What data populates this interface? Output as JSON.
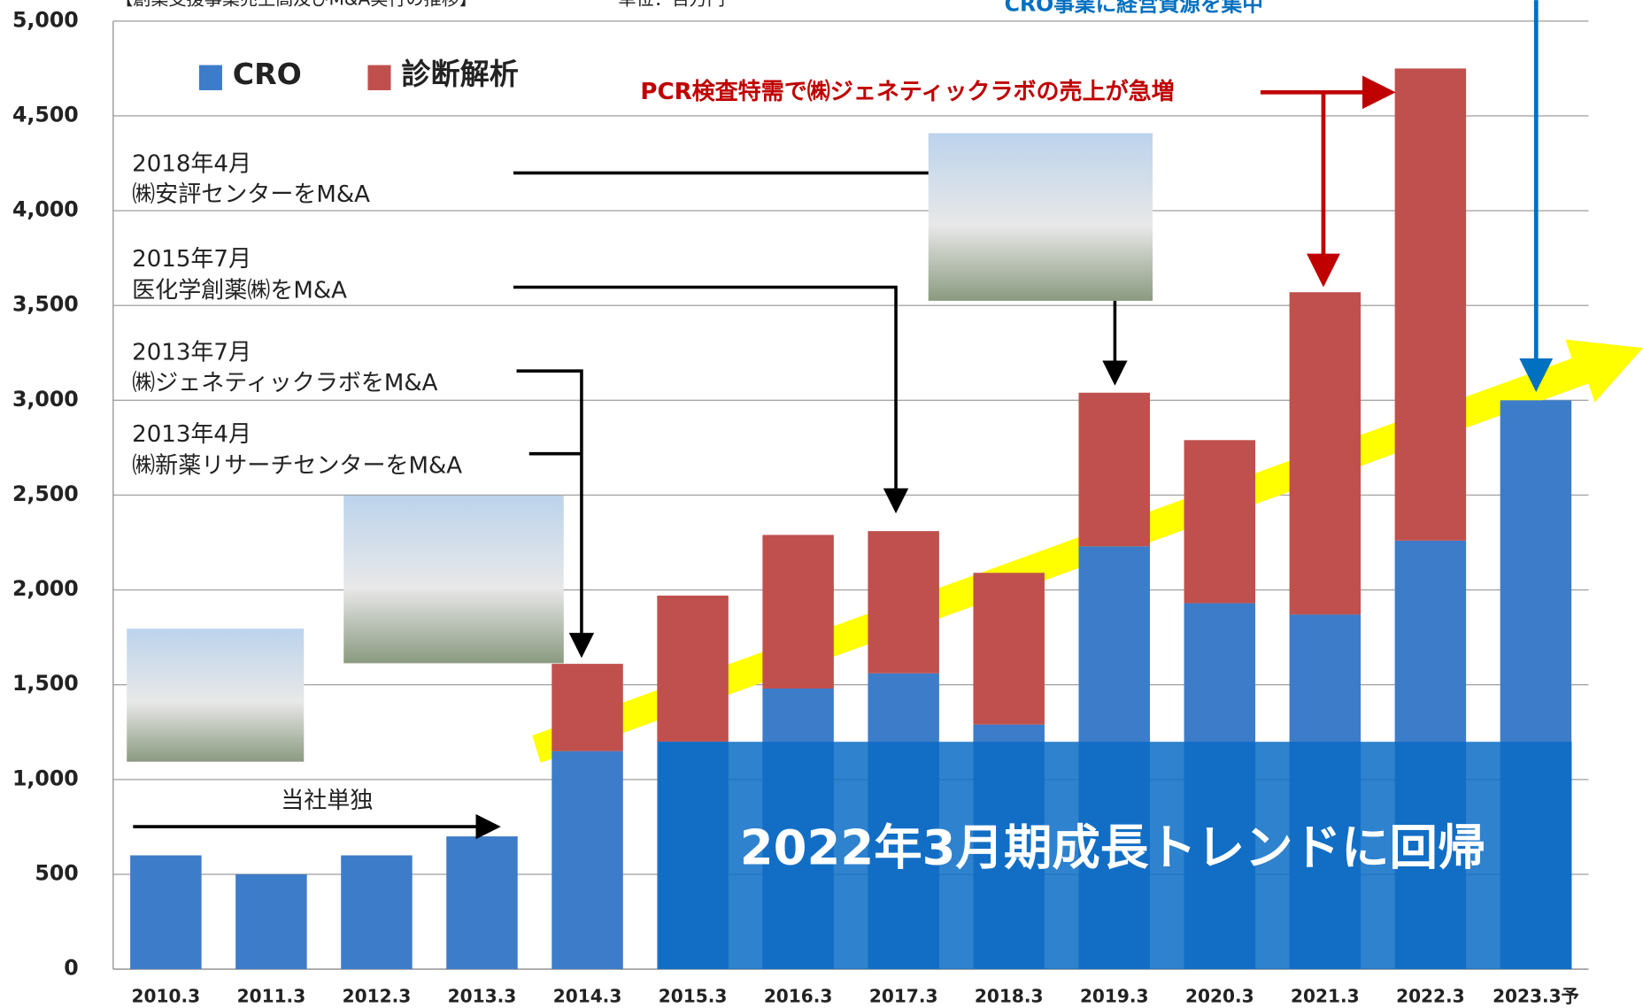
{
  "chart_data": {
    "type": "bar",
    "stacked": true,
    "title": "【創薬支援事業売上高及びM&A実行の推移】",
    "subtitle": "単位：百万円",
    "categories": [
      "2010.3",
      "2011.3",
      "2012.3",
      "2013.3",
      "2014.3",
      "2015.3",
      "2016.3",
      "2017.3",
      "2018.3",
      "2019.3",
      "2020.3",
      "2021.3",
      "2022.3",
      "2023.3予"
    ],
    "series": [
      {
        "name": "CRO",
        "color": "#3d7cc9",
        "values": [
          600,
          500,
          600,
          700,
          1150,
          1200,
          1480,
          1560,
          1290,
          2230,
          1930,
          1870,
          2260,
          3000
        ]
      },
      {
        "name": "診断解析",
        "color": "#c0504d",
        "values": [
          null,
          null,
          null,
          null,
          460,
          770,
          810,
          750,
          800,
          810,
          860,
          1700,
          2490,
          null
        ]
      }
    ],
    "ylim": [
      0,
      5000
    ],
    "yticks": [
      0,
      500,
      {
        "value": 1000,
        "label": "1,000"
      },
      {
        "value": 1500,
        "label": "1,500"
      },
      {
        "value": 2000,
        "label": "2,000"
      },
      {
        "value": 2500,
        "label": "2,500"
      },
      {
        "value": 3000,
        "label": "3,000"
      },
      {
        "value": 3500,
        "label": "3,500"
      },
      {
        "value": 4000,
        "label": "4,000"
      },
      {
        "value": 4500,
        "label": "4,500"
      },
      {
        "value": 5000,
        "label": "5,000"
      }
    ],
    "grid": true,
    "annotations": {
      "focus": "CRO事業に経営資源を集中",
      "pcr": "PCR検査特需で㈱ジェネティックラボの売上が急増",
      "ma2018": [
        "2018年4月",
        "㈱安評センターをM&A"
      ],
      "ma2015": [
        "2015年7月",
        "医化学創薬㈱をM&A"
      ],
      "ma2013b": [
        "2013年7月",
        "㈱ジェネティックラボをM&A"
      ],
      "ma2013a": [
        "2013年4月",
        "㈱新薬リサーチセンターをM&A"
      ],
      "alone": "当社単独",
      "trend": "2022年3月期成長トレンドに回帰"
    }
  }
}
